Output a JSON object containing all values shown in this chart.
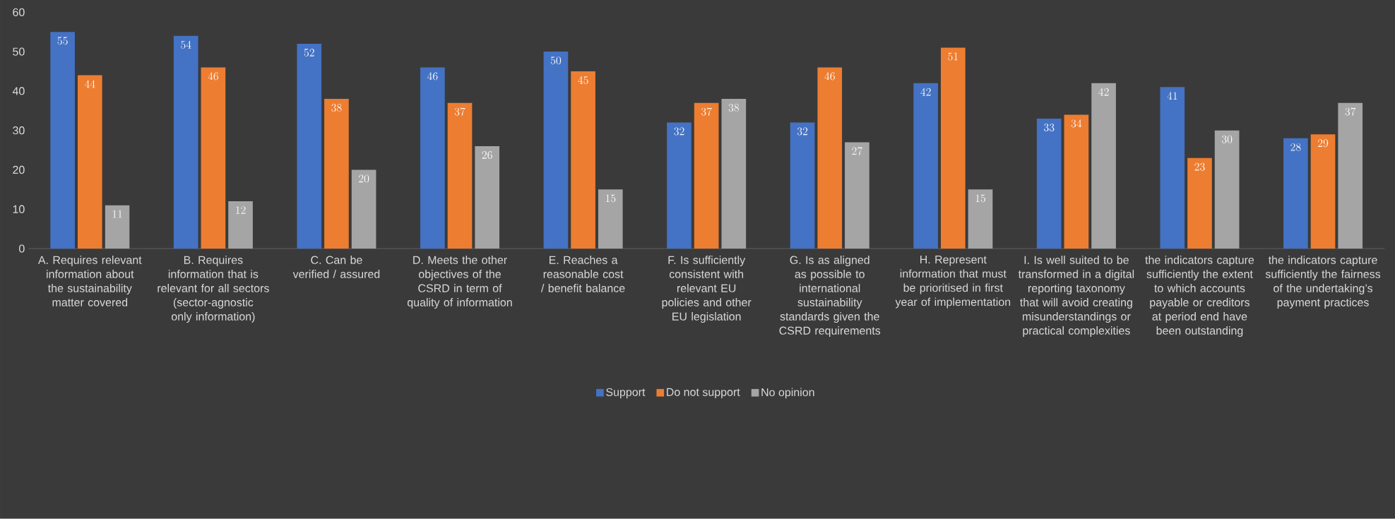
{
  "chart_data": {
    "type": "bar",
    "categories": [
      "A. Requires relevant information about the sustainability matter covered",
      "B. Requires information that is relevant for all sectors (sector-agnostic only information)",
      "C. Can be verified / assured",
      "D. Meets the other objectives of the CSRD in term of quality of information",
      "E. Reaches a reasonable cost / benefit balance",
      "F. Is sufficiently consistent with relevant EU policies and other EU legislation",
      "G. Is as aligned as possible to international sustainability standards given the CSRD requirements",
      "H. Represent information that must be prioritised in first year of implementation",
      "I. Is well suited to be transformed in a digital reporting taxonomy that will avoid creating misunderstandings or practical complexities",
      "the indicators capture sufficiently the extent to which accounts payable or creditors at period end have been outstanding",
      "the indicators capture sufficiently the fairness of the undertaking’s payment practices"
    ],
    "series": [
      {
        "name": "Support",
        "color": "#4472c4",
        "values": [
          55,
          54,
          52,
          46,
          50,
          32,
          32,
          42,
          33,
          41,
          28
        ]
      },
      {
        "name": "Do not support",
        "color": "#ed7d31",
        "values": [
          44,
          46,
          38,
          37,
          45,
          37,
          46,
          51,
          34,
          23,
          29
        ]
      },
      {
        "name": "No opinion",
        "color": "#a5a5a5",
        "values": [
          11,
          12,
          20,
          26,
          15,
          38,
          27,
          15,
          42,
          30,
          37
        ]
      }
    ],
    "ylim": [
      0,
      60
    ],
    "yticks": [
      0,
      10,
      20,
      30,
      40,
      50,
      60
    ],
    "data_labels": true,
    "legend": "bottom"
  }
}
